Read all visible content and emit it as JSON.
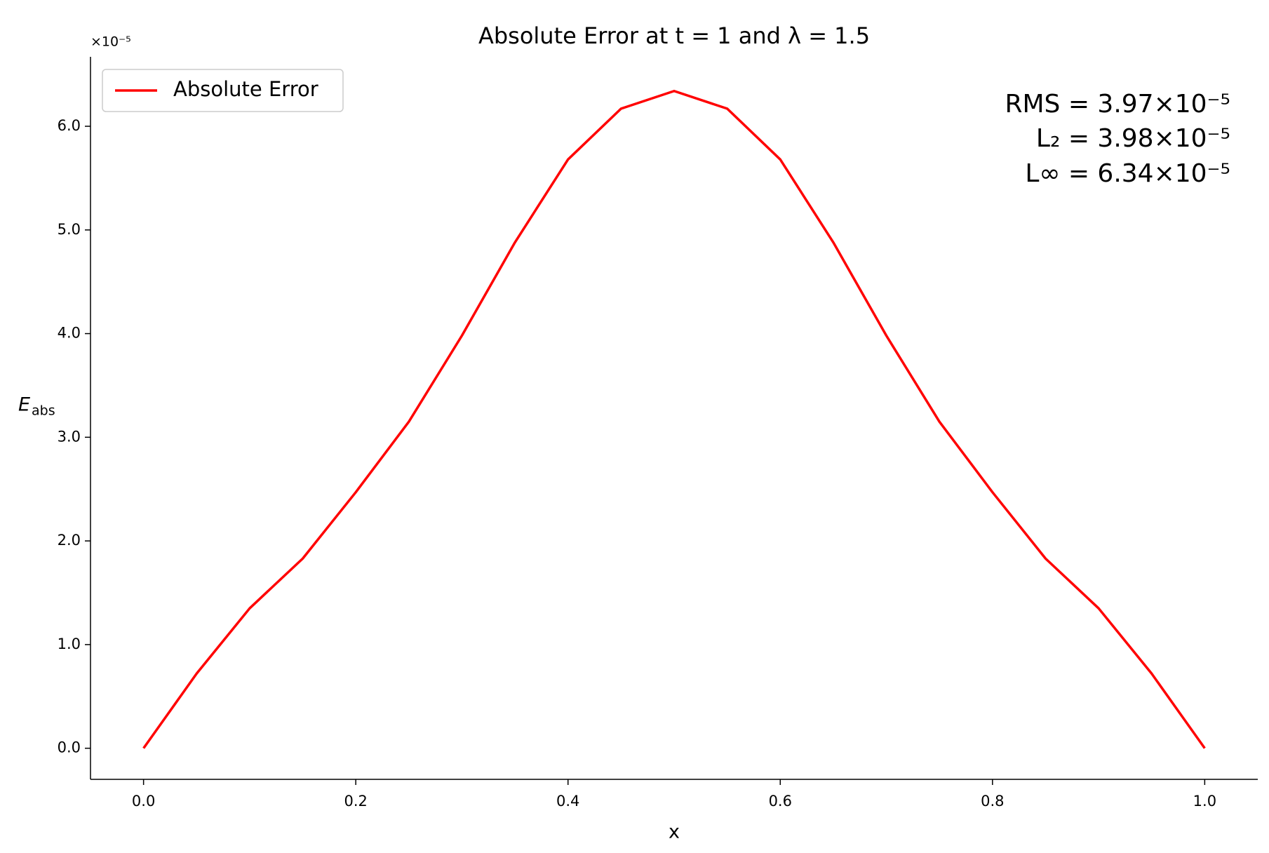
{
  "chart_data": {
    "type": "line",
    "title": "Absolute Error at t = 1 and λ = 1.5",
    "xlabel": "x",
    "ylabel": {
      "main": "E",
      "sub": "abs"
    },
    "y_offset_label": "×10⁻⁵",
    "annotations": [
      "RMS = 3.97×10⁻⁵",
      "L₂ = 3.98×10⁻⁵",
      "L∞ = 6.34×10⁻⁵"
    ],
    "x": [
      0,
      0.05,
      0.1,
      0.15,
      0.2,
      0.25,
      0.3,
      0.35,
      0.4,
      0.45,
      0.5,
      0.55,
      0.6,
      0.65,
      0.7,
      0.75,
      0.8,
      0.85,
      0.9,
      0.95,
      1.0
    ],
    "series": [
      {
        "name": "Absolute Error",
        "color": "#ff0000",
        "values": [
          0,
          0.72,
          1.35,
          1.83,
          2.47,
          3.15,
          3.98,
          4.88,
          5.68,
          6.17,
          6.34,
          6.17,
          5.68,
          4.88,
          3.98,
          3.15,
          2.47,
          1.83,
          1.35,
          0.72,
          0
        ]
      }
    ],
    "xlim": [
      -0.05,
      1.05
    ],
    "ylim": [
      -0.3,
      6.67
    ],
    "xticks": [
      {
        "value": 0,
        "label": "0.0"
      },
      {
        "value": 0.2,
        "label": "0.2"
      },
      {
        "value": 0.4,
        "label": "0.4"
      },
      {
        "value": 0.6,
        "label": "0.6"
      },
      {
        "value": 0.8,
        "label": "0.8"
      },
      {
        "value": 1,
        "label": "1.0"
      }
    ],
    "yticks": [
      {
        "value": 0,
        "label": "0.0"
      },
      {
        "value": 1,
        "label": "1.0"
      },
      {
        "value": 2,
        "label": "2.0"
      },
      {
        "value": 3,
        "label": "3.0"
      },
      {
        "value": 4,
        "label": "4.0"
      },
      {
        "value": 5,
        "label": "5.0"
      },
      {
        "value": 6,
        "label": "6.0"
      }
    ],
    "grid": false,
    "legend": "upper-left"
  }
}
